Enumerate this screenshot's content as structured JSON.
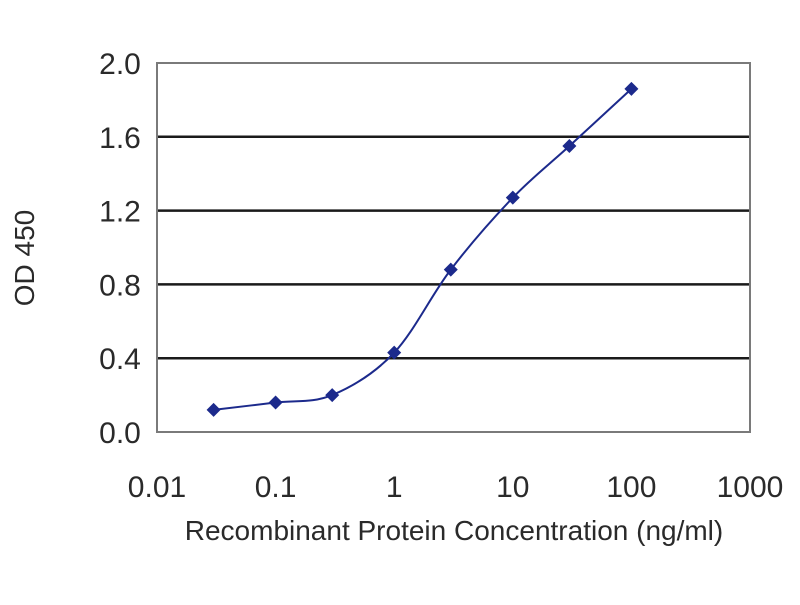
{
  "chart_data": {
    "type": "line",
    "title": "",
    "xlabel": "Recombinant Protein Concentration (ng/ml)",
    "ylabel": "OD 450",
    "x_scale": "log",
    "xlim": [
      0.01,
      1000
    ],
    "ylim": [
      0.0,
      2.0
    ],
    "x_tick_labels": [
      "0.01",
      "0.1",
      "1",
      "10",
      "100",
      "1000"
    ],
    "y_tick_labels": [
      "0.0",
      "0.4",
      "0.8",
      "1.2",
      "1.6",
      "2.0"
    ],
    "grid": "horizontal",
    "legend": "none",
    "series": [
      {
        "x": [
          0.03,
          0.1,
          0.3,
          1,
          3,
          10,
          30,
          100
        ],
        "y": [
          0.12,
          0.16,
          0.2,
          0.43,
          0.88,
          1.27,
          1.55,
          1.86
        ]
      }
    ],
    "colors": {
      "series": "#1c2a8c",
      "grid": "#1a1a1a",
      "frame": "#7a7a7a"
    }
  }
}
